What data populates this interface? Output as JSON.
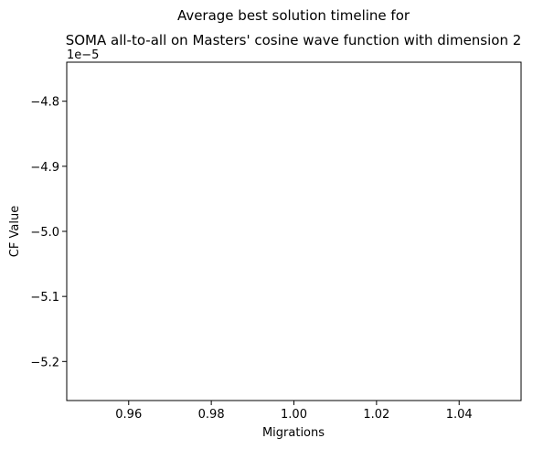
{
  "chart_data": {
    "type": "line",
    "title_line1": "Average best solution timeline for",
    "title_line2": "SOMA all-to-all on Masters' cosine wave function with dimension 2",
    "xlabel": "Migrations",
    "ylabel": "CF Value",
    "y_offset_label": "1e−5",
    "xlim": [
      0.945,
      1.055
    ],
    "ylim": [
      -5.26,
      -4.74
    ],
    "x_ticks": [
      0.96,
      0.98,
      1.0,
      1.02,
      1.04
    ],
    "x_tick_labels": [
      "0.96",
      "0.98",
      "1.00",
      "1.02",
      "1.04"
    ],
    "y_ticks": [
      -4.8,
      -4.9,
      -5.0,
      -5.1,
      -5.2
    ],
    "y_tick_labels": [
      "−4.8",
      "−4.9",
      "−5.0",
      "−5.1",
      "−5.2"
    ],
    "series": [],
    "grid": false,
    "legend": false
  }
}
